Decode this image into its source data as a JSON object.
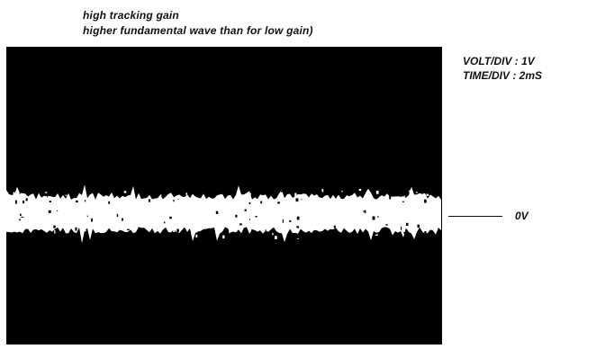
{
  "caption": {
    "line1": "high tracking gain",
    "line2": "higher fundamental wave than for low gain)"
  },
  "scope_settings": {
    "volt_div": "VOLT/DIV : 1V",
    "time_div": "TIME/DIV : 2mS"
  },
  "zero_level_label": "0V",
  "colors": {
    "screen": "#000000",
    "trace": "#ffffff",
    "text": "#111111"
  }
}
